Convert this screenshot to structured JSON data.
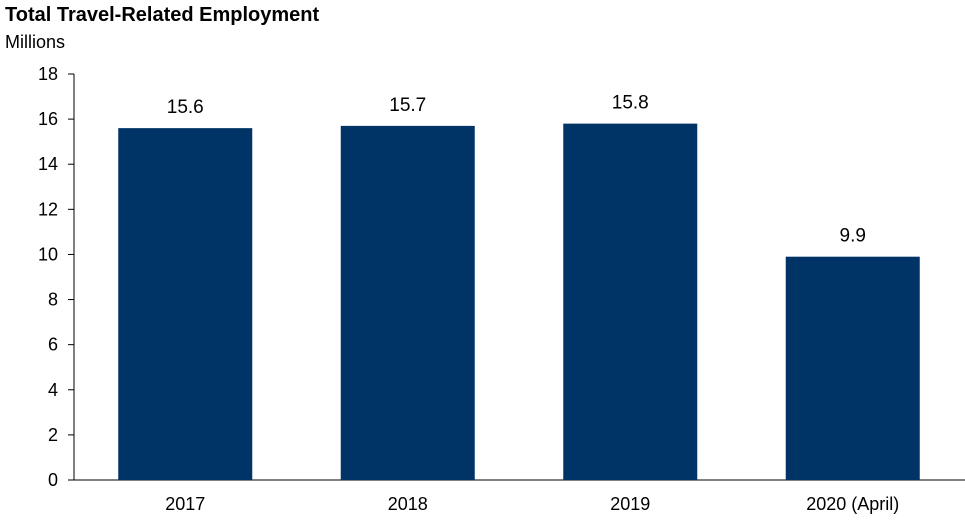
{
  "chart_data": {
    "type": "bar",
    "title": "Total Travel-Related Employment",
    "subtitle": "Millions",
    "categories": [
      "2017",
      "2018",
      "2019",
      "2020 (April)"
    ],
    "values": [
      15.6,
      15.7,
      15.8,
      9.9
    ],
    "data_labels": [
      "15.6",
      "15.7",
      "15.8",
      "9.9"
    ],
    "ylim": [
      0,
      18
    ],
    "yticks": [
      0,
      2,
      4,
      6,
      8,
      10,
      12,
      14,
      16,
      18
    ],
    "grid": false,
    "legend": "none",
    "bar_color": "#003366"
  }
}
